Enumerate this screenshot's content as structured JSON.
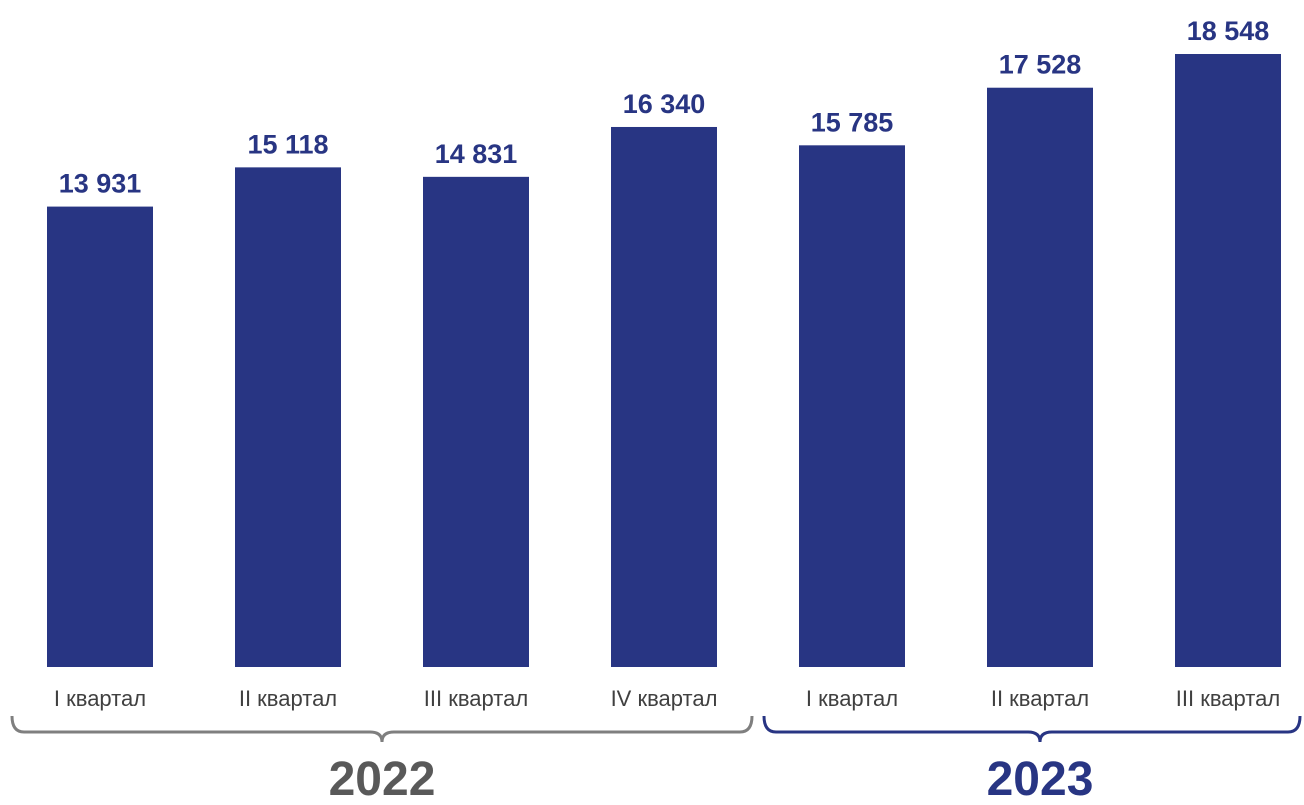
{
  "chart_data": {
    "type": "bar",
    "categories": [
      "I квартал",
      "II квартал",
      "III квартал",
      "IV квартал",
      "I квартал",
      "II квартал",
      "III квартал"
    ],
    "values": [
      13931,
      15118,
      14831,
      16340,
      15785,
      17528,
      18548
    ],
    "value_labels": [
      "13 931",
      "15 118",
      "14 831",
      "16 340",
      "15 785",
      "17 528",
      "18 548"
    ],
    "groups": [
      {
        "label": "2022",
        "start": 0,
        "end": 3,
        "color": "#7f7f7f",
        "text_color": "#595959"
      },
      {
        "label": "2023",
        "start": 4,
        "end": 6,
        "color": "#283583",
        "text_color": "#283583"
      }
    ],
    "ylim": [
      0,
      18548
    ],
    "grid": false,
    "title": "",
    "xlabel": "",
    "ylabel": "",
    "bar_color": "#283583",
    "label_color": "#283583"
  }
}
